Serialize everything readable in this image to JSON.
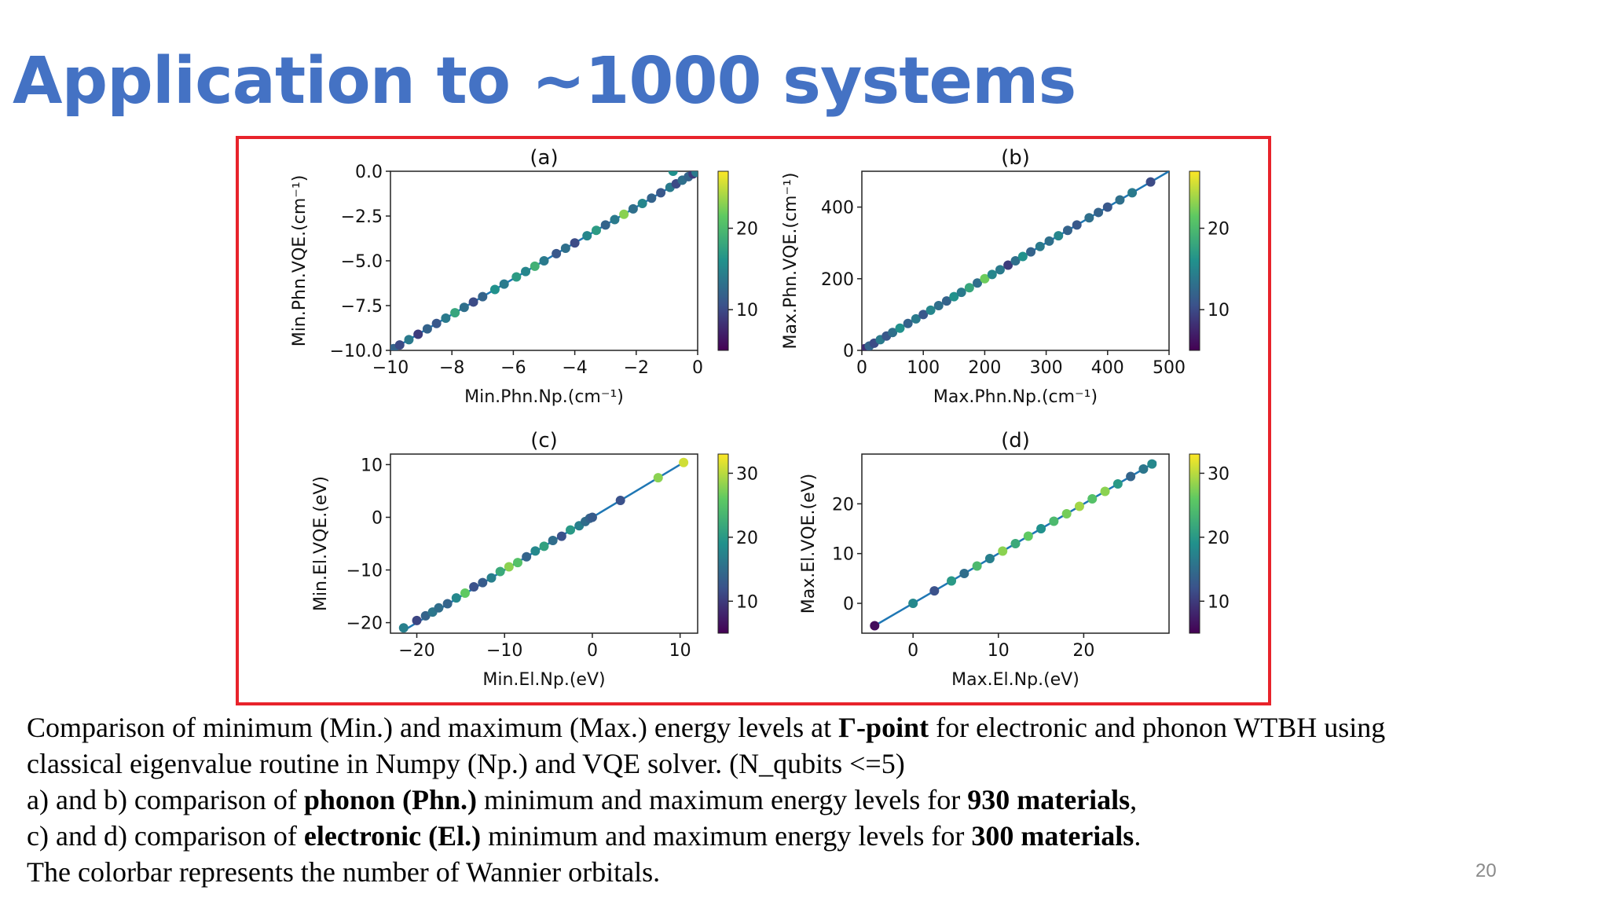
{
  "slide": {
    "title": "Application to ~1000 systems",
    "page_number": "20"
  },
  "caption": {
    "line1_a": "Comparison of minimum (Min.) and maximum (Max.) energy levels at ",
    "line1_bold": "Γ-point",
    "line1_b": " for electronic and phonon WTBH using",
    "line2": "classical eigenvalue routine in Numpy (Np.) and VQE solver. (N_qubits <=5)",
    "line3_a": "a)   and b) comparison of ",
    "line3_bold1": "phonon (Phn.)",
    "line3_b": " minimum and maximum energy levels for ",
    "line3_bold2": "930 materials",
    "line3_c": ",",
    "line4_a": "c) and d) comparison of ",
    "line4_bold1": "electronic (El.)",
    "line4_b": " minimum and maximum energy levels for ",
    "line4_bold2": "300 materials",
    "line4_c": ".",
    "line5": "The colorbar represents the number of Wannier orbitals."
  },
  "colors": {
    "frame": "#e8232b",
    "title": "#4472c4",
    "fit_line": "#1f77b4",
    "viridis": [
      "#440154",
      "#3b528b",
      "#21918c",
      "#5ec962",
      "#fde725"
    ]
  },
  "chart_data": [
    {
      "id": "a",
      "type": "scatter",
      "title": "(a)",
      "xlabel": "Min.Phn.Np.(cm⁻¹)",
      "ylabel": "Min.Phn.VQE.(cm⁻¹)",
      "xlim": [
        -10,
        0
      ],
      "ylim": [
        -10,
        0
      ],
      "xticks": [
        -10,
        -8,
        -6,
        -4,
        -2,
        0
      ],
      "xtick_labels": [
        "−10",
        "−8",
        "−6",
        "−4",
        "−2",
        "0"
      ],
      "yticks": [
        0,
        -2.5,
        -5,
        -7.5,
        -10
      ],
      "ytick_labels": [
        "0.0",
        "−2.5",
        "−5.0",
        "−7.5",
        "−10.0"
      ],
      "colorbar": {
        "range": [
          5,
          27
        ],
        "ticks": [
          10,
          20
        ],
        "tick_labels": [
          "10",
          "20"
        ]
      },
      "line": [
        [
          -10,
          -10
        ],
        [
          0,
          0
        ]
      ],
      "points": [
        [
          -9.9,
          -9.9,
          12
        ],
        [
          -9.7,
          -9.7,
          10
        ],
        [
          -9.4,
          -9.4,
          14
        ],
        [
          -9.1,
          -9.1,
          9
        ],
        [
          -8.8,
          -8.8,
          12
        ],
        [
          -8.5,
          -8.5,
          11
        ],
        [
          -8.2,
          -8.2,
          14
        ],
        [
          -7.9,
          -7.9,
          18
        ],
        [
          -7.6,
          -7.6,
          13
        ],
        [
          -7.3,
          -7.3,
          10
        ],
        [
          -7.0,
          -7.0,
          12
        ],
        [
          -6.6,
          -6.6,
          16
        ],
        [
          -6.3,
          -6.3,
          14
        ],
        [
          -5.9,
          -5.9,
          17
        ],
        [
          -5.6,
          -5.6,
          15
        ],
        [
          -5.3,
          -5.3,
          19
        ],
        [
          -5.0,
          -5.0,
          14
        ],
        [
          -4.6,
          -4.6,
          11
        ],
        [
          -4.3,
          -4.3,
          13
        ],
        [
          -4.0,
          -4.0,
          10
        ],
        [
          -3.6,
          -3.6,
          15
        ],
        [
          -3.3,
          -3.3,
          17
        ],
        [
          -3.0,
          -3.0,
          12
        ],
        [
          -2.7,
          -2.7,
          14
        ],
        [
          -2.4,
          -2.4,
          23
        ],
        [
          -2.1,
          -2.1,
          13
        ],
        [
          -1.8,
          -1.8,
          15
        ],
        [
          -1.5,
          -1.5,
          12
        ],
        [
          -1.2,
          -1.2,
          11
        ],
        [
          -0.9,
          -0.9,
          14
        ],
        [
          -0.7,
          -0.7,
          10
        ],
        [
          -0.5,
          -0.5,
          13
        ],
        [
          -0.3,
          -0.3,
          12
        ],
        [
          -0.15,
          -0.15,
          9
        ],
        [
          -0.05,
          -0.05,
          14
        ],
        [
          -0.8,
          0.0,
          16
        ]
      ]
    },
    {
      "id": "b",
      "type": "scatter",
      "title": "(b)",
      "xlabel": "Max.Phn.Np.(cm⁻¹)",
      "ylabel": "Max.Phn.VQE.(cm⁻¹)",
      "xlim": [
        0,
        500
      ],
      "ylim": [
        0,
        500
      ],
      "xticks": [
        0,
        100,
        200,
        300,
        400,
        500
      ],
      "xtick_labels": [
        "0",
        "100",
        "200",
        "300",
        "400",
        "500"
      ],
      "yticks": [
        0,
        200,
        400
      ],
      "ytick_labels": [
        "0",
        "200",
        "400"
      ],
      "colorbar": {
        "range": [
          5,
          27
        ],
        "ticks": [
          10,
          20
        ],
        "tick_labels": [
          "10",
          "20"
        ]
      },
      "line": [
        [
          0,
          0
        ],
        [
          500,
          500
        ]
      ],
      "points": [
        [
          5,
          5,
          8
        ],
        [
          12,
          12,
          12
        ],
        [
          20,
          20,
          10
        ],
        [
          30,
          30,
          14
        ],
        [
          40,
          40,
          11
        ],
        [
          50,
          50,
          13
        ],
        [
          62,
          62,
          16
        ],
        [
          75,
          75,
          12
        ],
        [
          88,
          88,
          14
        ],
        [
          100,
          100,
          11
        ],
        [
          112,
          112,
          15
        ],
        [
          125,
          125,
          13
        ],
        [
          138,
          138,
          12
        ],
        [
          150,
          150,
          16
        ],
        [
          162,
          162,
          14
        ],
        [
          175,
          175,
          18
        ],
        [
          188,
          188,
          13
        ],
        [
          200,
          200,
          22
        ],
        [
          212,
          212,
          15
        ],
        [
          225,
          225,
          14
        ],
        [
          238,
          238,
          9
        ],
        [
          250,
          250,
          13
        ],
        [
          262,
          262,
          16
        ],
        [
          275,
          275,
          12
        ],
        [
          290,
          290,
          14
        ],
        [
          305,
          305,
          13
        ],
        [
          320,
          320,
          15
        ],
        [
          335,
          335,
          12
        ],
        [
          350,
          350,
          11
        ],
        [
          370,
          370,
          13
        ],
        [
          385,
          385,
          12
        ],
        [
          400,
          400,
          11
        ],
        [
          420,
          420,
          13
        ],
        [
          440,
          440,
          14
        ],
        [
          470,
          470,
          10
        ]
      ]
    },
    {
      "id": "c",
      "type": "scatter",
      "title": "(c)",
      "xlabel": "Min.El.Np.(eV)",
      "ylabel": "Min.El.VQE.(eV)",
      "xlim": [
        -23,
        12
      ],
      "ylim": [
        -22,
        12
      ],
      "xticks": [
        -20,
        -10,
        0,
        10
      ],
      "xtick_labels": [
        "−20",
        "−10",
        "0",
        "10"
      ],
      "yticks": [
        10,
        0,
        -10,
        -20
      ],
      "ytick_labels": [
        "10",
        "0",
        "−10",
        "−20"
      ],
      "colorbar": {
        "range": [
          5,
          33
        ],
        "ticks": [
          10,
          20,
          30
        ],
        "tick_labels": [
          "10",
          "20",
          "30"
        ]
      },
      "line": [
        [
          -21.5,
          -21.5
        ],
        [
          10.5,
          10.5
        ]
      ],
      "points": [
        [
          -21.5,
          -21,
          17
        ],
        [
          -20.0,
          -19.6,
          11
        ],
        [
          -19.0,
          -18.7,
          14
        ],
        [
          -18.2,
          -18.0,
          16
        ],
        [
          -17.5,
          -17.2,
          15
        ],
        [
          -16.5,
          -16.4,
          14
        ],
        [
          -15.5,
          -15.3,
          18
        ],
        [
          -14.5,
          -14.4,
          26
        ],
        [
          -13.5,
          -13.2,
          12
        ],
        [
          -12.5,
          -12.4,
          13
        ],
        [
          -11.5,
          -11.5,
          17
        ],
        [
          -10.5,
          -10.3,
          22
        ],
        [
          -9.5,
          -9.4,
          28
        ],
        [
          -8.5,
          -8.6,
          25
        ],
        [
          -7.5,
          -7.5,
          14
        ],
        [
          -6.5,
          -6.4,
          18
        ],
        [
          -5.5,
          -5.5,
          21
        ],
        [
          -4.5,
          -4.4,
          15
        ],
        [
          -3.5,
          -3.6,
          12
        ],
        [
          -2.5,
          -2.4,
          20
        ],
        [
          -1.5,
          -1.6,
          17
        ],
        [
          -0.8,
          -0.8,
          15
        ],
        [
          -0.3,
          -0.2,
          14
        ],
        [
          0.0,
          0.0,
          13
        ],
        [
          3.2,
          3.2,
          12
        ],
        [
          7.5,
          7.5,
          28
        ],
        [
          10.4,
          10.4,
          31
        ]
      ]
    },
    {
      "id": "d",
      "type": "scatter",
      "title": "(d)",
      "xlabel": "Max.El.Np.(eV)",
      "ylabel": "Max.El.VQE.(eV)",
      "xlim": [
        -6,
        30
      ],
      "ylim": [
        -6,
        30
      ],
      "xticks": [
        0,
        10,
        20
      ],
      "xtick_labels": [
        "0",
        "10",
        "20"
      ],
      "yticks": [
        0,
        10,
        20
      ],
      "ytick_labels": [
        "0",
        "10",
        "20"
      ],
      "colorbar": {
        "range": [
          5,
          33
        ],
        "ticks": [
          10,
          20,
          30
        ],
        "tick_labels": [
          "10",
          "20",
          "30"
        ]
      },
      "line": [
        [
          -4.5,
          -4.5
        ],
        [
          28.5,
          28.5
        ]
      ],
      "points": [
        [
          -4.5,
          -4.5,
          6
        ],
        [
          0.0,
          0.0,
          18
        ],
        [
          2.5,
          2.5,
          12
        ],
        [
          4.5,
          4.5,
          20
        ],
        [
          6.0,
          6.0,
          15
        ],
        [
          7.5,
          7.5,
          24
        ],
        [
          9.0,
          9.0,
          17
        ],
        [
          10.5,
          10.5,
          28
        ],
        [
          12.0,
          12.0,
          22
        ],
        [
          13.5,
          13.5,
          26
        ],
        [
          15.0,
          15.0,
          19
        ],
        [
          16.5,
          16.5,
          24
        ],
        [
          18.0,
          18.0,
          27
        ],
        [
          19.5,
          19.5,
          29
        ],
        [
          21.0,
          21.0,
          25
        ],
        [
          22.5,
          22.5,
          28
        ],
        [
          24.0,
          24.0,
          20
        ],
        [
          25.5,
          25.5,
          14
        ],
        [
          27.0,
          27.0,
          16
        ],
        [
          28.0,
          28.0,
          18
        ]
      ]
    }
  ]
}
